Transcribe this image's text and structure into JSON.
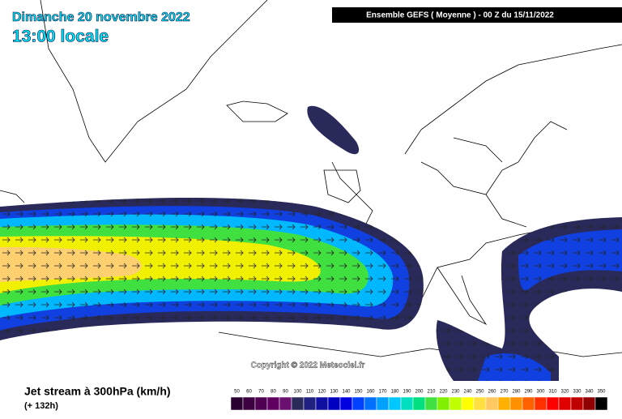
{
  "title": {
    "date": "Dimanche 20 novembre 2022",
    "time": "13:00 locale"
  },
  "header": "Ensemble GEFS  ( Moyenne )  - 00 Z du 15/11/2022",
  "copyright": "Copyright © 2022 Meteociel.fr",
  "legend": {
    "title": "Jet stream à 300hPa (km/h)",
    "forecast_hour": "(+ 132h)",
    "ticks": [
      50,
      60,
      70,
      80,
      90,
      100,
      110,
      120,
      130,
      140,
      150,
      160,
      170,
      180,
      190,
      200,
      210,
      220,
      230,
      240,
      250,
      260,
      270,
      280,
      290,
      300,
      310,
      320,
      330,
      340,
      350
    ],
    "colors": [
      "#2a0030",
      "#3d0040",
      "#4f0050",
      "#620062",
      "#6a1070",
      "#2a2a5a",
      "#202080",
      "#1010a0",
      "#0000c0",
      "#0000e0",
      "#0040ff",
      "#0070ff",
      "#00a0ff",
      "#00c8ff",
      "#00e0c0",
      "#00e080",
      "#40e040",
      "#80f000",
      "#c0ff00",
      "#ffff00",
      "#ffe040",
      "#ffc860",
      "#ffb000",
      "#ff9000",
      "#ff6000",
      "#ff3000",
      "#ff0000",
      "#e00000",
      "#c00000",
      "#900000",
      "#000000"
    ]
  }
}
